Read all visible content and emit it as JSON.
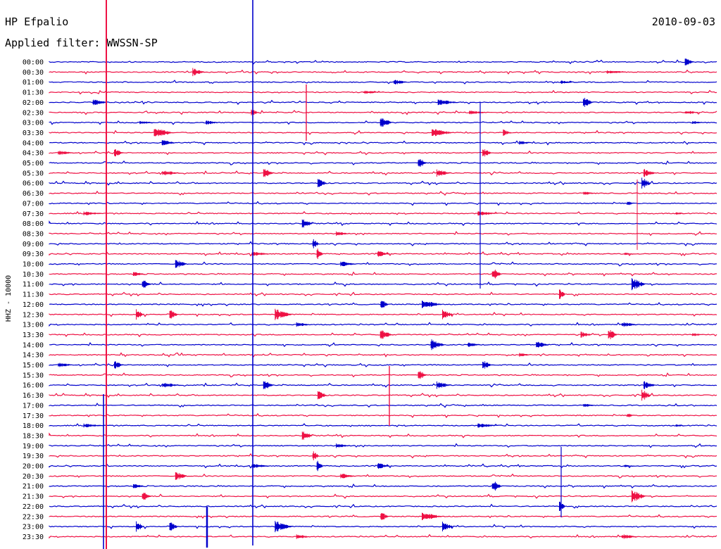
{
  "chart_data": {
    "type": "line",
    "title": "HP Efpalio",
    "date": "2010-09-03",
    "subtitle": "Applied filter: WWSSN-SP",
    "ylabel": "HHZ - 10000",
    "colors": {
      "a": "#0000cc",
      "b": "#ee1144"
    },
    "rows": [
      "00:00",
      "00:30",
      "01:00",
      "01:30",
      "02:00",
      "02:30",
      "03:00",
      "03:30",
      "04:00",
      "04:30",
      "05:00",
      "05:30",
      "06:00",
      "06:30",
      "07:00",
      "07:30",
      "08:00",
      "08:30",
      "09:00",
      "09:30",
      "10:00",
      "10:30",
      "11:00",
      "11:30",
      "12:00",
      "12:30",
      "13:00",
      "13:30",
      "14:00",
      "14:30",
      "15:00",
      "15:30",
      "16:00",
      "16:30",
      "17:00",
      "17:30",
      "18:00",
      "18:30",
      "19:00",
      "19:30",
      "20:00",
      "20:30",
      "21:00",
      "21:30",
      "22:00",
      "22:30",
      "23:00",
      "23:30"
    ]
  }
}
